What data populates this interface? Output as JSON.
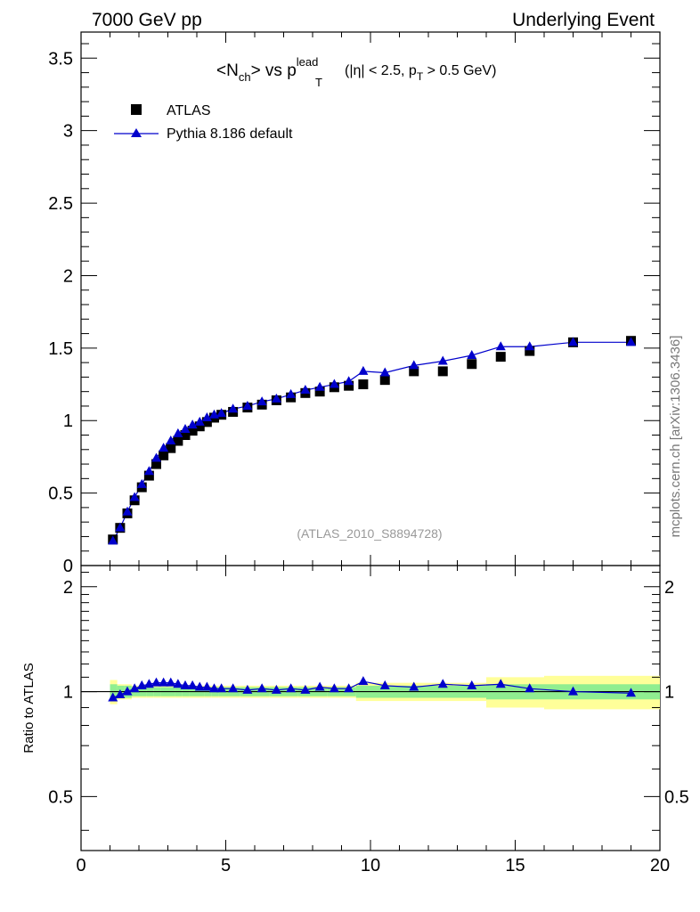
{
  "header": {
    "left": "7000 GeV pp",
    "right": "Underlying Event"
  },
  "plot_title": {
    "main": "<N",
    "main_sub": "ch",
    "vs": "> vs p",
    "p_sup": "lead",
    "p_sub": "T",
    "cuts_a": "(|η| < 2.5, p",
    "cuts_sub": "T",
    "cuts_b": " > 0.5 GeV)"
  },
  "watermark": "(ATLAS_2010_S8894728)",
  "side_credit": "mcplots.cern.ch [arXiv:1306.3436]",
  "ratio_ylabel": "Ratio to ATLAS",
  "colors": {
    "mc": "#0000cc",
    "data": "#000000",
    "band_inner": "#90ee90",
    "band_outer": "#ffff99"
  },
  "chart_data": [
    {
      "type": "scatter",
      "panel": "main",
      "xlim": [
        0,
        20
      ],
      "ylim": [
        0,
        3.68
      ],
      "y_ticks": [
        "0",
        "0.5",
        "1",
        "1.5",
        "2",
        "2.5",
        "3",
        "3.5"
      ],
      "legend": {
        "placement": "top-left",
        "entries": [
          "ATLAS",
          "Pythia 8.186 default"
        ]
      },
      "series": [
        {
          "name": "ATLAS",
          "marker": "square",
          "x": [
            1.1,
            1.35,
            1.6,
            1.85,
            2.1,
            2.35,
            2.6,
            2.85,
            3.1,
            3.35,
            3.6,
            3.85,
            4.1,
            4.35,
            4.6,
            4.85,
            5.25,
            5.75,
            6.25,
            6.75,
            7.25,
            7.75,
            8.25,
            8.75,
            9.25,
            9.75,
            10.5,
            11.5,
            12.5,
            13.5,
            14.5,
            15.5,
            17.0,
            19.0
          ],
          "y": [
            0.18,
            0.26,
            0.36,
            0.45,
            0.54,
            0.62,
            0.7,
            0.76,
            0.81,
            0.86,
            0.9,
            0.93,
            0.96,
            0.99,
            1.02,
            1.04,
            1.06,
            1.09,
            1.11,
            1.14,
            1.16,
            1.19,
            1.2,
            1.23,
            1.24,
            1.25,
            1.28,
            1.34,
            1.34,
            1.39,
            1.44,
            1.48,
            1.54,
            1.55
          ]
        },
        {
          "name": "Pythia 8.186 default",
          "marker": "triangle",
          "x": [
            1.1,
            1.35,
            1.6,
            1.85,
            2.1,
            2.35,
            2.6,
            2.85,
            3.1,
            3.35,
            3.6,
            3.85,
            4.1,
            4.35,
            4.6,
            4.85,
            5.25,
            5.75,
            6.25,
            6.75,
            7.25,
            7.75,
            8.25,
            8.75,
            9.25,
            9.75,
            10.5,
            11.5,
            12.5,
            13.5,
            14.5,
            15.5,
            17.0,
            19.0
          ],
          "y": [
            0.17,
            0.26,
            0.37,
            0.47,
            0.56,
            0.65,
            0.74,
            0.81,
            0.86,
            0.91,
            0.94,
            0.97,
            0.99,
            1.02,
            1.04,
            1.05,
            1.08,
            1.1,
            1.13,
            1.15,
            1.18,
            1.21,
            1.23,
            1.25,
            1.27,
            1.34,
            1.33,
            1.38,
            1.41,
            1.45,
            1.51,
            1.51,
            1.54,
            1.54
          ]
        }
      ]
    },
    {
      "type": "line",
      "panel": "ratio",
      "ylabel": "Ratio to ATLAS",
      "xlim": [
        0,
        20
      ],
      "ylim": [
        0.35,
        2.3
      ],
      "x_ticks": [
        "0",
        "5",
        "10",
        "15",
        "20"
      ],
      "y_ticks": [
        "0.5",
        "1",
        "2"
      ],
      "reference_line": 1,
      "bands": {
        "edges": [
          1,
          1.25,
          1.5,
          1.75,
          2,
          2.25,
          2.5,
          2.75,
          3,
          3.25,
          3.5,
          3.75,
          4,
          4.25,
          4.5,
          4.75,
          5,
          5.5,
          6,
          6.5,
          7,
          7.5,
          8,
          8.5,
          9,
          9.5,
          10,
          11,
          12,
          13,
          14,
          15,
          16,
          18,
          20
        ],
        "inner_lo": [
          0.95,
          0.96,
          0.96,
          0.97,
          0.97,
          0.97,
          0.97,
          0.97,
          0.97,
          0.97,
          0.97,
          0.97,
          0.97,
          0.97,
          0.97,
          0.97,
          0.97,
          0.97,
          0.97,
          0.97,
          0.97,
          0.97,
          0.97,
          0.97,
          0.97,
          0.96,
          0.96,
          0.96,
          0.96,
          0.96,
          0.95,
          0.95,
          0.95,
          0.95
        ],
        "inner_hi": [
          1.05,
          1.04,
          1.04,
          1.03,
          1.03,
          1.03,
          1.03,
          1.03,
          1.03,
          1.03,
          1.03,
          1.03,
          1.03,
          1.03,
          1.03,
          1.03,
          1.03,
          1.03,
          1.03,
          1.03,
          1.03,
          1.03,
          1.03,
          1.03,
          1.03,
          1.04,
          1.04,
          1.04,
          1.04,
          1.04,
          1.05,
          1.05,
          1.05,
          1.05
        ],
        "outer_lo": [
          0.92,
          0.95,
          0.95,
          0.96,
          0.96,
          0.96,
          0.96,
          0.96,
          0.96,
          0.96,
          0.96,
          0.96,
          0.96,
          0.96,
          0.96,
          0.96,
          0.96,
          0.96,
          0.96,
          0.96,
          0.96,
          0.96,
          0.96,
          0.96,
          0.96,
          0.94,
          0.94,
          0.94,
          0.94,
          0.94,
          0.9,
          0.9,
          0.89,
          0.89
        ],
        "outer_hi": [
          1.08,
          1.05,
          1.05,
          1.04,
          1.04,
          1.04,
          1.04,
          1.04,
          1.04,
          1.04,
          1.04,
          1.04,
          1.04,
          1.04,
          1.04,
          1.04,
          1.04,
          1.04,
          1.04,
          1.04,
          1.04,
          1.04,
          1.04,
          1.04,
          1.04,
          1.06,
          1.06,
          1.06,
          1.06,
          1.06,
          1.1,
          1.1,
          1.11,
          1.11
        ]
      },
      "series": [
        {
          "name": "Pythia 8.186 default",
          "marker": "triangle",
          "x": [
            1.1,
            1.35,
            1.6,
            1.85,
            2.1,
            2.35,
            2.6,
            2.85,
            3.1,
            3.35,
            3.6,
            3.85,
            4.1,
            4.35,
            4.6,
            4.85,
            5.25,
            5.75,
            6.25,
            6.75,
            7.25,
            7.75,
            8.25,
            8.75,
            9.25,
            9.75,
            10.5,
            11.5,
            12.5,
            13.5,
            14.5,
            15.5,
            17.0,
            19.0
          ],
          "y": [
            0.96,
            0.98,
            1.0,
            1.02,
            1.04,
            1.05,
            1.06,
            1.06,
            1.06,
            1.05,
            1.04,
            1.04,
            1.03,
            1.03,
            1.02,
            1.02,
            1.02,
            1.01,
            1.02,
            1.01,
            1.02,
            1.01,
            1.03,
            1.02,
            1.02,
            1.07,
            1.04,
            1.03,
            1.05,
            1.04,
            1.05,
            1.02,
            1.0,
            0.99
          ]
        }
      ]
    }
  ]
}
